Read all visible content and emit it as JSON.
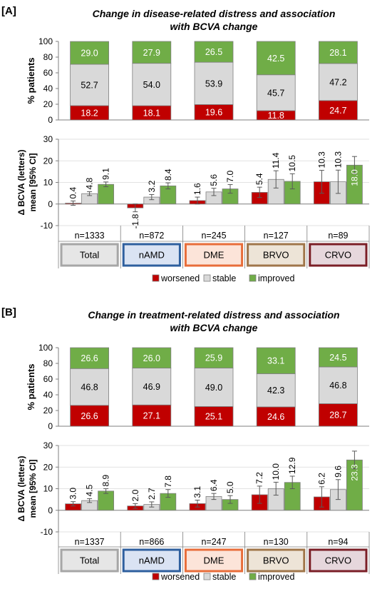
{
  "colors": {
    "worsened": "#c00000",
    "stable": "#d9d9d9",
    "improved": "#70ad47",
    "bar_border": "#7f7f7f",
    "error_bar": "#595959",
    "axis": "#7f7f7f",
    "gridline": "#d9d9d9"
  },
  "panels": [
    {
      "label": "[A]",
      "title_line1": "Change in disease-related distress and association",
      "title_line2": "with BCVA change"
    },
    {
      "label": "[B]",
      "title_line1": "Change in treatment-related distress and association",
      "title_line2": "with BCVA change"
    }
  ],
  "chart_data": [
    {
      "panel": "A",
      "type": "bar",
      "stacked": true,
      "orientation": "vertical",
      "title": "Change in disease-related distress and association with BCVA change",
      "ylabel": "% patients",
      "ylim": [
        0,
        100
      ],
      "yticks": [
        "0",
        "20",
        "40",
        "60",
        "80",
        "100"
      ],
      "categories": [
        "Total",
        "nAMD",
        "DME",
        "BRVO",
        "CRVO"
      ],
      "series": [
        {
          "name": "worsened",
          "values": [
            18.2,
            18.1,
            19.6,
            11.8,
            24.7
          ],
          "labels": [
            "18.2",
            "18.1",
            "19.6",
            "11.8",
            "24.7"
          ]
        },
        {
          "name": "stable",
          "values": [
            52.7,
            54.0,
            53.9,
            45.7,
            47.2
          ],
          "labels": [
            "52.7",
            "54.0",
            "53.9",
            "45.7",
            "47.2"
          ]
        },
        {
          "name": "improved",
          "values": [
            29.0,
            27.9,
            26.5,
            42.5,
            28.1
          ],
          "labels": [
            "29.0",
            "27.9",
            "26.5",
            "42.5",
            "28.1"
          ]
        }
      ]
    },
    {
      "panel": "A",
      "type": "bar",
      "stacked": false,
      "ylabel_line1": "Δ BCVA (letters)",
      "ylabel_line2": "mean [95% CI]",
      "ylim": [
        -10,
        30
      ],
      "yticks": [
        "-10",
        "0",
        "10",
        "20",
        "30"
      ],
      "categories": [
        "Total",
        "nAMD",
        "DME",
        "BRVO",
        "CRVO"
      ],
      "n_labels": [
        "n=1333",
        "n=872",
        "n=245",
        "n=127",
        "n=89"
      ],
      "series": [
        {
          "name": "worsened",
          "values": [
            0.4,
            -1.8,
            1.6,
            5.4,
            10.3
          ],
          "labels": [
            "0.4",
            "-1.8",
            "1.6",
            "5.4",
            "10.3"
          ],
          "ci_low": [
            -0.6,
            -3.6,
            0.0,
            3.0,
            5.0
          ],
          "ci_high": [
            1.4,
            0.0,
            3.2,
            7.8,
            15.6
          ]
        },
        {
          "name": "stable",
          "values": [
            4.8,
            3.2,
            5.6,
            11.4,
            10.3
          ],
          "labels": [
            "4.8",
            "3.2",
            "5.6",
            "11.4",
            "10.3"
          ],
          "ci_low": [
            3.9,
            2.0,
            3.9,
            7.4,
            4.9
          ],
          "ci_high": [
            5.7,
            4.4,
            7.3,
            15.4,
            15.7
          ]
        },
        {
          "name": "improved",
          "values": [
            9.1,
            8.4,
            7.0,
            10.5,
            18.0
          ],
          "labels": [
            "9.1",
            "8.4",
            "7.0",
            "10.5",
            "18.0"
          ],
          "ci_low": [
            8.0,
            7.0,
            5.0,
            7.0,
            14.0
          ],
          "ci_high": [
            10.2,
            9.8,
            9.0,
            14.0,
            22.0
          ]
        }
      ]
    },
    {
      "panel": "B",
      "type": "bar",
      "stacked": true,
      "orientation": "vertical",
      "title": "Change in treatment-related distress and association with BCVA change",
      "ylabel": "% patients",
      "ylim": [
        0,
        100
      ],
      "yticks": [
        "0",
        "20",
        "40",
        "60",
        "80",
        "100"
      ],
      "categories": [
        "Total",
        "nAMD",
        "DME",
        "BRVO",
        "CRVO"
      ],
      "series": [
        {
          "name": "worsened",
          "values": [
            26.6,
            27.1,
            25.1,
            24.6,
            28.7
          ],
          "labels": [
            "26.6",
            "27.1",
            "25.1",
            "24.6",
            "28.7"
          ]
        },
        {
          "name": "stable",
          "values": [
            46.8,
            46.9,
            49.0,
            42.3,
            46.8
          ],
          "labels": [
            "46.8",
            "46.9",
            "49.0",
            "42.3",
            "46.8"
          ]
        },
        {
          "name": "improved",
          "values": [
            26.6,
            26.0,
            25.9,
            33.1,
            24.5
          ],
          "labels": [
            "26.6",
            "26.0",
            "25.9",
            "33.1",
            "24.5"
          ]
        }
      ]
    },
    {
      "panel": "B",
      "type": "bar",
      "stacked": false,
      "ylabel_line1": "Δ BCVA (letters)",
      "ylabel_line2": "mean [95% CI]",
      "ylim": [
        -10,
        30
      ],
      "yticks": [
        "-10",
        "0",
        "10",
        "20",
        "30"
      ],
      "categories": [
        "Total",
        "nAMD",
        "DME",
        "BRVO",
        "CRVO"
      ],
      "n_labels": [
        "n=1337",
        "n=866",
        "n=247",
        "n=130",
        "n=94"
      ],
      "series": [
        {
          "name": "worsened",
          "values": [
            3.0,
            2.0,
            3.1,
            7.2,
            6.2
          ],
          "labels": [
            "3.0",
            "2.0",
            "3.1",
            "7.2",
            "6.2"
          ],
          "ci_low": [
            2.0,
            0.9,
            1.5,
            3.2,
            1.5
          ],
          "ci_high": [
            4.0,
            3.1,
            4.7,
            11.2,
            10.9
          ]
        },
        {
          "name": "stable",
          "values": [
            4.5,
            2.7,
            6.4,
            10.0,
            9.6
          ],
          "labels": [
            "4.5",
            "2.7",
            "6.4",
            "10.0",
            "9.6"
          ],
          "ci_low": [
            3.6,
            1.5,
            5.0,
            7.0,
            5.0
          ],
          "ci_high": [
            5.4,
            3.9,
            7.8,
            13.0,
            14.2
          ]
        },
        {
          "name": "improved",
          "values": [
            8.9,
            7.8,
            5.0,
            12.9,
            23.3
          ],
          "labels": [
            "8.9",
            "7.8",
            "5.0",
            "12.9",
            "23.3"
          ],
          "ci_low": [
            7.8,
            6.0,
            3.2,
            10.0,
            19.2
          ],
          "ci_high": [
            10.0,
            9.6,
            6.8,
            15.8,
            27.4
          ]
        }
      ]
    }
  ],
  "category_boxes": [
    {
      "label": "Total",
      "fill": "#e6e6e6",
      "border": "#a6a6a6"
    },
    {
      "label": "nAMD",
      "fill": "#dae3f3",
      "border": "#2e5f9e"
    },
    {
      "label": "DME",
      "fill": "#fce4d9",
      "border": "#e86d3a"
    },
    {
      "label": "BRVO",
      "fill": "#ede4d7",
      "border": "#a0764a"
    },
    {
      "label": "CRVO",
      "fill": "#e6d7dc",
      "border": "#7b1f27"
    }
  ],
  "legend": [
    {
      "label": "worsened",
      "color": "#c00000"
    },
    {
      "label": "stable",
      "color": "#d9d9d9"
    },
    {
      "label": "improved",
      "color": "#70ad47"
    }
  ]
}
